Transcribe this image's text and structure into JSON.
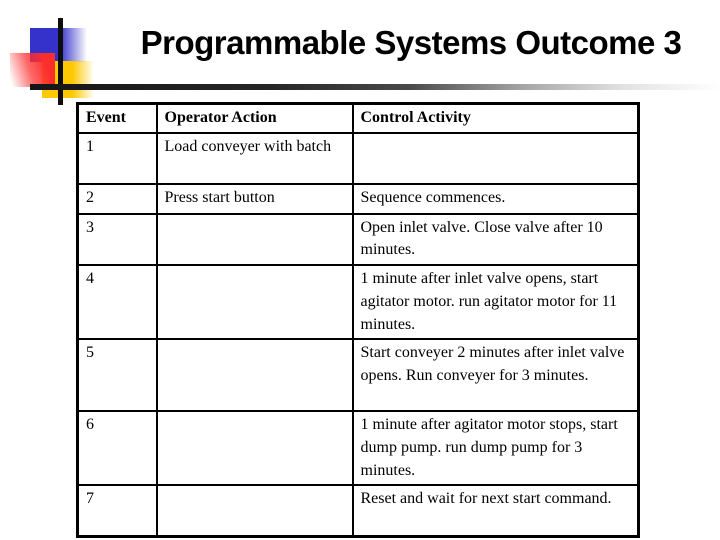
{
  "slide": {
    "title": "Programmable Systems Outcome 3"
  },
  "decoration": {
    "colors": {
      "blue_square": "#3432cb",
      "yellow_square": "#fec802",
      "red_square": "#fb2e2e",
      "line": "#0d0d0d"
    }
  },
  "table": {
    "headers": [
      "Event",
      "Operator Action",
      "Control Activity"
    ],
    "rows": [
      {
        "event": "1",
        "operator_action": "Load conveyer with batch",
        "control_activity": ""
      },
      {
        "event": "2",
        "operator_action": "Press start button",
        "control_activity": "Sequence commences."
      },
      {
        "event": "3",
        "operator_action": "",
        "control_activity": "Open inlet valve. Close valve after 10 minutes."
      },
      {
        "event": "4",
        "operator_action": "",
        "control_activity": "1 minute after inlet valve opens, start agitator motor. run agitator motor for 11 minutes."
      },
      {
        "event": "5",
        "operator_action": "",
        "control_activity": "Start conveyer 2 minutes after inlet valve opens. Run conveyer for 3 minutes."
      },
      {
        "event": "6",
        "operator_action": "",
        "control_activity": "1 minute after agitator motor stops, start dump pump. run dump pump for 3 minutes."
      },
      {
        "event": "7",
        "operator_action": "",
        "control_activity": "Reset and wait for next start command."
      }
    ]
  }
}
